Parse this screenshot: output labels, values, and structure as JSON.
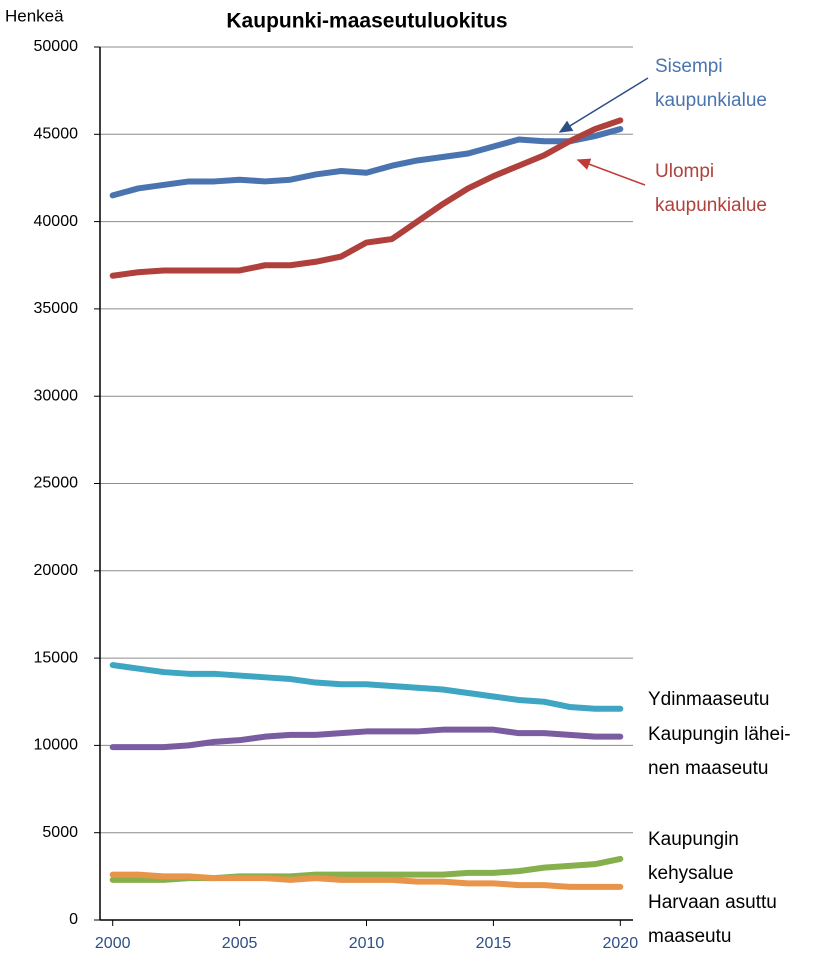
{
  "chart_data": {
    "type": "line",
    "title": "Kaupunki-maaseutuluokitus",
    "y_label": "Henkeä",
    "x": [
      2000,
      2001,
      2002,
      2003,
      2004,
      2005,
      2006,
      2007,
      2008,
      2009,
      2010,
      2011,
      2012,
      2013,
      2014,
      2015,
      2016,
      2017,
      2018,
      2019,
      2020
    ],
    "xlim": [
      1999.5,
      2020.5
    ],
    "xticks": [
      2000,
      2005,
      2010,
      2015,
      2020
    ],
    "ylim": [
      0,
      50000
    ],
    "yticks": [
      0,
      5000,
      10000,
      15000,
      20000,
      25000,
      30000,
      35000,
      40000,
      45000,
      50000
    ],
    "grid": true,
    "series": [
      {
        "name": "Sisempi\nkaupunkialue",
        "color": "#4a74b0",
        "values": [
          41500,
          41900,
          42100,
          42300,
          42300,
          42400,
          42300,
          42400,
          42700,
          42900,
          42800,
          43200,
          43500,
          43700,
          43900,
          44300,
          44700,
          44600,
          44600,
          44900,
          45300
        ]
      },
      {
        "name": "Ulompi\nkaupunkialue",
        "color": "#b0403c",
        "values": [
          36900,
          37100,
          37200,
          37200,
          37200,
          37200,
          37500,
          37500,
          37700,
          38000,
          38800,
          39000,
          40000,
          41000,
          41900,
          42600,
          43200,
          43800,
          44600,
          45300,
          45800
        ]
      },
      {
        "name": "Ydinmaaseutu",
        "color": "#3ea6c2",
        "values": [
          14600,
          14400,
          14200,
          14100,
          14100,
          14000,
          13900,
          13800,
          13600,
          13500,
          13500,
          13400,
          13300,
          13200,
          13000,
          12800,
          12600,
          12500,
          12200,
          12100,
          12100
        ]
      },
      {
        "name": "Kaupungin lähei-\nnen maaseutu",
        "color": "#7a5ca0",
        "values": [
          9900,
          9900,
          9900,
          10000,
          10200,
          10300,
          10500,
          10600,
          10600,
          10700,
          10800,
          10800,
          10800,
          10900,
          10900,
          10900,
          10700,
          10700,
          10600,
          10500,
          10500
        ]
      },
      {
        "name": "Kaupungin\nkehysalue",
        "color": "#86b04c",
        "values": [
          2300,
          2300,
          2300,
          2400,
          2400,
          2500,
          2500,
          2500,
          2600,
          2600,
          2600,
          2600,
          2600,
          2600,
          2700,
          2700,
          2800,
          3000,
          3100,
          3200,
          3500
        ]
      },
      {
        "name": "Harvaan asuttu\nmaaseutu",
        "color": "#e8954a",
        "values": [
          2600,
          2600,
          2500,
          2500,
          2400,
          2400,
          2400,
          2300,
          2400,
          2300,
          2300,
          2300,
          2200,
          2200,
          2100,
          2100,
          2000,
          2000,
          1900,
          1900,
          1900
        ]
      }
    ]
  }
}
